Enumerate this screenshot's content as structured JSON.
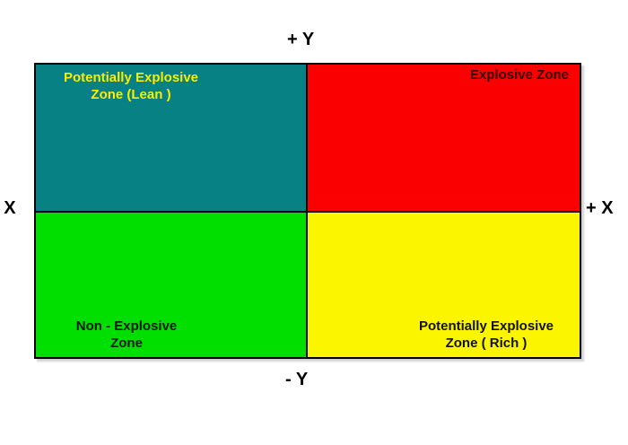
{
  "figure": {
    "axis_labels": {
      "top": "+ Y",
      "bottom": "- Y",
      "right": "+ X",
      "left": "- X"
    },
    "quadrants": {
      "top_left": {
        "line1": "Potentially Explosive",
        "line2": "Zone (Lean )",
        "bg": "#088184",
        "fg": "#FAEE00"
      },
      "top_right": {
        "line1": "Explosive Zone",
        "bg": "#FA0000",
        "fg": "#350000"
      },
      "bottom_left": {
        "line1": "Non - Explosive",
        "line2": "Zone",
        "bg": "#00DF00",
        "fg": "#001800"
      },
      "bottom_right": {
        "line1": "Potentially Explosive",
        "line2": "Zone ( Rich )",
        "bg": "#FCF500",
        "fg": "#121200"
      }
    },
    "colors": {
      "border": "#000000",
      "background": "#FFFFFF",
      "teal_zone": "#088184",
      "red_zone": "#FA0000",
      "green_zone": "#00DF00",
      "yellow_zone": "#FCF500"
    }
  }
}
